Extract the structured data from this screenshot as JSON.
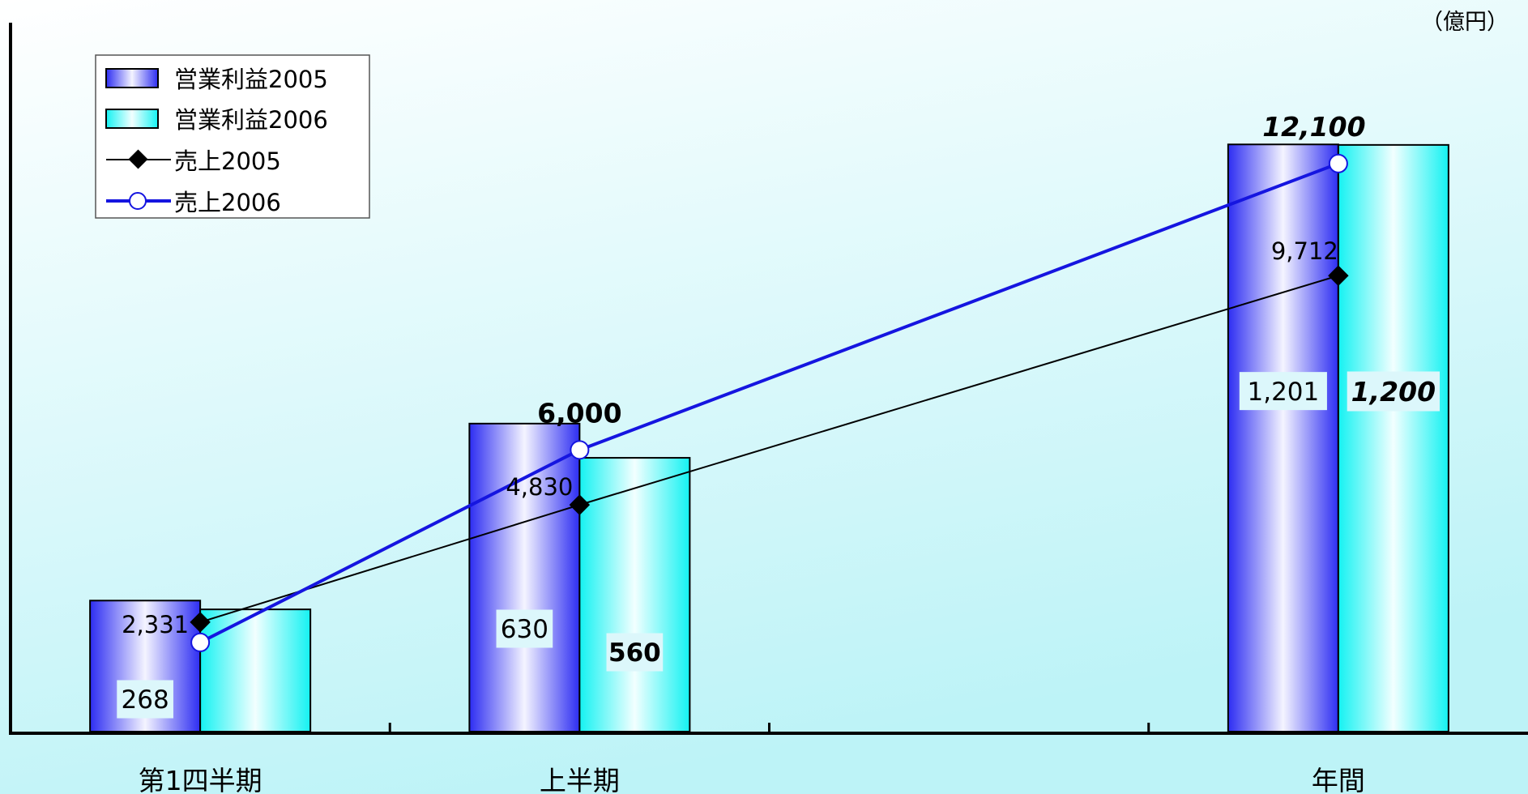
{
  "unit_label": "（億円）",
  "colors": {
    "bar2005_dark": "#2d2df2",
    "bar2005_light": "#f4f4ff",
    "bar2006_dark": "#14f2f2",
    "bar2006_light": "#f2ffff",
    "line2005": "#000000",
    "line2006": "#1515e0",
    "bg_top": "#ffffff",
    "bg_bottom": "#bdf3f7",
    "label_box": "#dcf7fb"
  },
  "chart_data": {
    "type": "bar",
    "categories": [
      "第1四半期",
      "上半期",
      "",
      "年間"
    ],
    "legend_position": "top-left",
    "grid": false,
    "ylim_bar": [
      0,
      1450
    ],
    "ylim_line": [
      0,
      15100
    ],
    "series": [
      {
        "name": "営業利益2005",
        "kind": "bar",
        "values": [
          268,
          630,
          null,
          1201
        ],
        "labels": [
          "268",
          "630",
          "",
          "1,201"
        ]
      },
      {
        "name": "営業利益2006",
        "kind": "bar",
        "values": [
          250,
          560,
          null,
          1200
        ],
        "labels": [
          "",
          "560",
          "",
          "1,200"
        ]
      },
      {
        "name": "売上2005",
        "kind": "line",
        "marker": "diamond",
        "values": [
          2331,
          4830,
          null,
          9712
        ],
        "labels": [
          "2,331",
          "4,830",
          "",
          "9,712"
        ]
      },
      {
        "name": "売上2006",
        "kind": "line",
        "marker": "circle",
        "values": [
          1900,
          6000,
          null,
          12100
        ],
        "labels": [
          "",
          "6,000",
          "",
          "12,100"
        ]
      }
    ]
  }
}
